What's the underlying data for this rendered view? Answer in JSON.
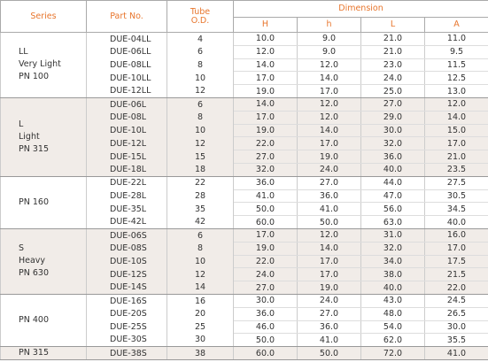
{
  "header": {
    "series": "Series",
    "part_no": "Part No.",
    "tube": [
      "Tube",
      "O.D."
    ],
    "dimension": "Dimension",
    "dims": [
      "H",
      "h",
      "L",
      "A"
    ]
  },
  "groups": [
    {
      "series": [
        "LL",
        "Very Light",
        "PN 100"
      ],
      "rows": [
        [
          "DUE-04LL",
          "4",
          "10.0",
          "9.0",
          "21.0",
          "11.0"
        ],
        [
          "DUE-06LL",
          "6",
          "12.0",
          "9.0",
          "21.0",
          "9.5"
        ],
        [
          "DUE-08LL",
          "8",
          "14.0",
          "12.0",
          "23.0",
          "11.5"
        ],
        [
          "DUE-10LL",
          "10",
          "17.0",
          "14.0",
          "24.0",
          "12.5"
        ],
        [
          "DUE-12LL",
          "12",
          "19.0",
          "17.0",
          "25.0",
          "13.0"
        ]
      ]
    },
    {
      "series": [
        "L",
        "Light",
        "PN 315"
      ],
      "rows": [
        [
          "DUE-06L",
          "6",
          "14.0",
          "12.0",
          "27.0",
          "12.0"
        ],
        [
          "DUE-08L",
          "8",
          "17.0",
          "12.0",
          "29.0",
          "14.0"
        ],
        [
          "DUE-10L",
          "10",
          "19.0",
          "14.0",
          "30.0",
          "15.0"
        ],
        [
          "DUE-12L",
          "12",
          "22.0",
          "17.0",
          "32.0",
          "17.0"
        ],
        [
          "DUE-15L",
          "15",
          "27.0",
          "19.0",
          "36.0",
          "21.0"
        ],
        [
          "DUE-18L",
          "18",
          "32.0",
          "24.0",
          "40.0",
          "23.5"
        ]
      ]
    },
    {
      "series": [
        "PN 160"
      ],
      "rows": [
        [
          "DUE-22L",
          "22",
          "36.0",
          "27.0",
          "44.0",
          "27.5"
        ],
        [
          "DUE-28L",
          "28",
          "41.0",
          "36.0",
          "47.0",
          "30.5"
        ],
        [
          "DUE-35L",
          "35",
          "50.0",
          "41.0",
          "56.0",
          "34.5"
        ],
        [
          "DUE-42L",
          "42",
          "60.0",
          "50.0",
          "63.0",
          "40.0"
        ]
      ]
    },
    {
      "series": [
        "S",
        "Heavy",
        "PN 630"
      ],
      "rows": [
        [
          "DUE-06S",
          "6",
          "17.0",
          "12.0",
          "31.0",
          "16.0"
        ],
        [
          "DUE-08S",
          "8",
          "19.0",
          "14.0",
          "32.0",
          "17.0"
        ],
        [
          "DUE-10S",
          "10",
          "22.0",
          "17.0",
          "34.0",
          "17.5"
        ],
        [
          "DUE-12S",
          "12",
          "24.0",
          "17.0",
          "38.0",
          "21.5"
        ],
        [
          "DUE-14S",
          "14",
          "27.0",
          "19.0",
          "40.0",
          "22.0"
        ]
      ]
    },
    {
      "series": [
        "PN 400"
      ],
      "rows": [
        [
          "DUE-16S",
          "16",
          "30.0",
          "24.0",
          "43.0",
          "24.5"
        ],
        [
          "DUE-20S",
          "20",
          "36.0",
          "27.0",
          "48.0",
          "26.5"
        ],
        [
          "DUE-25S",
          "25",
          "46.0",
          "36.0",
          "54.0",
          "30.0"
        ],
        [
          "DUE-30S",
          "30",
          "50.0",
          "41.0",
          "62.0",
          "35.5"
        ]
      ]
    },
    {
      "series": [
        "PN 315"
      ],
      "rows": [
        [
          "DUE-38S",
          "38",
          "60.0",
          "50.0",
          "72.0",
          "41.0"
        ]
      ]
    }
  ]
}
